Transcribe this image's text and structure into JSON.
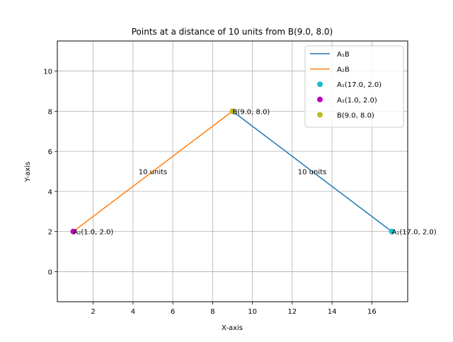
{
  "chart_data": {
    "type": "line",
    "title": "Points at a distance of 10 units from B(9.0, 8.0)",
    "xlabel": "X-axis",
    "ylabel": "Y-axis",
    "xlim": [
      0.2,
      17.8
    ],
    "ylim": [
      -1.5,
      11.5
    ],
    "xticks": [
      2,
      4,
      6,
      8,
      10,
      12,
      14,
      16
    ],
    "yticks": [
      0,
      2,
      4,
      6,
      8,
      10
    ],
    "grid": true,
    "legend_position": "top-right",
    "series": [
      {
        "name": "A₁B",
        "kind": "line",
        "color": "#1f77b4",
        "points": [
          [
            17.0,
            2.0
          ],
          [
            9.0,
            8.0
          ]
        ]
      },
      {
        "name": "A₂B",
        "kind": "line",
        "color": "#ff7f0e",
        "points": [
          [
            1.0,
            2.0
          ],
          [
            9.0,
            8.0
          ]
        ]
      },
      {
        "name": "A₁(17.0, 2.0)",
        "kind": "scatter",
        "color": "#17becf",
        "points": [
          [
            17.0,
            2.0
          ]
        ]
      },
      {
        "name": "A₂(1.0, 2.0)",
        "kind": "scatter",
        "color": "#c000c0",
        "points": [
          [
            1.0,
            2.0
          ]
        ]
      },
      {
        "name": "B(9.0, 8.0)",
        "kind": "scatter",
        "color": "#bcbd22",
        "points": [
          [
            9.0,
            8.0
          ]
        ]
      }
    ],
    "annotations": [
      {
        "text": "A₁(17.0, 2.0)",
        "x": 17.0,
        "y": 2.0
      },
      {
        "text": "A₂(1.0, 2.0)",
        "x": 1.0,
        "y": 2.0
      },
      {
        "text": "B(9.0, 8.0)",
        "x": 9.0,
        "y": 8.0
      },
      {
        "text": "10 units",
        "x": 5.0,
        "y": 5.0
      },
      {
        "text": "10 units",
        "x": 13.0,
        "y": 5.0
      }
    ]
  }
}
